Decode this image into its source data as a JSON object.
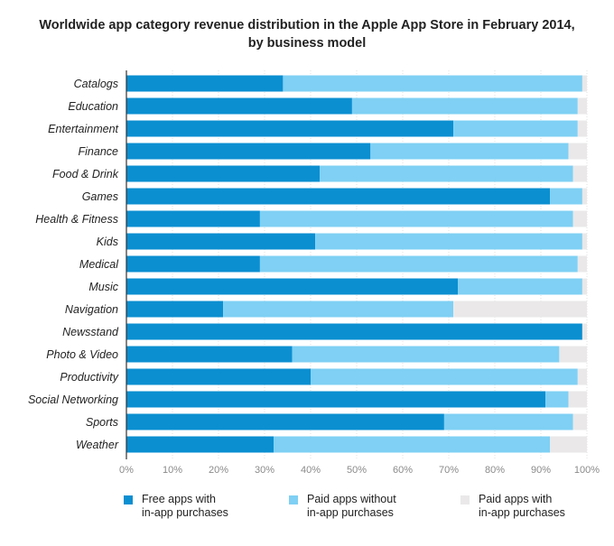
{
  "title_line1": "Worldwide app category revenue distribution in the Apple App Store in February 2014,",
  "title_line2": "by business model",
  "chart_data": {
    "type": "bar",
    "orientation": "horizontal",
    "stacked": true,
    "title": "Worldwide app category revenue distribution in the Apple App Store in February 2014, by business model",
    "xlabel": "",
    "ylabel": "",
    "xlim": [
      0,
      100
    ],
    "x_tick_labels": [
      "0%",
      "10%",
      "20%",
      "30%",
      "40%",
      "50%",
      "60%",
      "70%",
      "80%",
      "90%",
      "100%"
    ],
    "grid": true,
    "legend_position": "bottom",
    "categories": [
      "Catalogs",
      "Education",
      "Entertainment",
      "Finance",
      "Food & Drink",
      "Games",
      "Health & Fitness",
      "Kids",
      "Medical",
      "Music",
      "Navigation",
      "Newsstand",
      "Photo & Video",
      "Productivity",
      "Social Networking",
      "Sports",
      "Weather"
    ],
    "series": [
      {
        "name": "Free apps with in-app purchases",
        "color": "#0b8fd1",
        "values": [
          34,
          49,
          71,
          53,
          42,
          92,
          29,
          41,
          29,
          72,
          21,
          99,
          36,
          40,
          91,
          69,
          32
        ]
      },
      {
        "name": "Paid apps without in-app purchases",
        "color": "#7fd0f4",
        "values": [
          65,
          49,
          27,
          43,
          55,
          7,
          68,
          58,
          69,
          27,
          50,
          0,
          58,
          58,
          5,
          28,
          60
        ]
      },
      {
        "name": "Paid apps with in-app purchases",
        "color": "#eae8e9",
        "values": [
          1,
          2,
          2,
          4,
          3,
          1,
          3,
          1,
          2,
          1,
          29,
          1,
          6,
          2,
          4,
          3,
          8
        ]
      }
    ]
  },
  "legend": [
    {
      "line1": "Free apps with",
      "line2": "in-app purchases",
      "color": "#0b8fd1"
    },
    {
      "line1": "Paid apps without",
      "line2": "in-app purchases",
      "color": "#7fd0f4"
    },
    {
      "line1": "Paid apps with",
      "line2": "in-app purchases",
      "color": "#eae8e9"
    }
  ]
}
